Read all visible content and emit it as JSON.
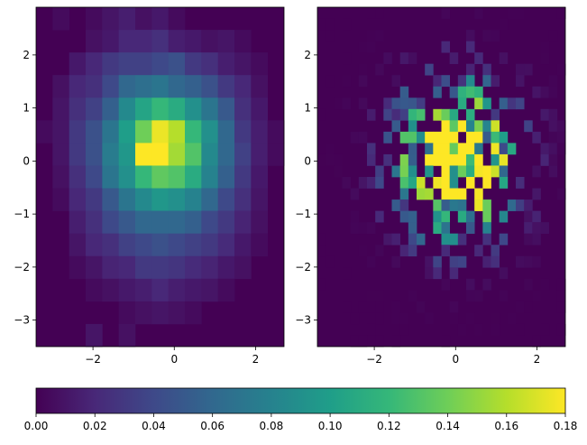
{
  "chart_data": [
    {
      "type": "heatmap",
      "title": "",
      "xlabel": "",
      "ylabel": "",
      "xlim": [
        -3.4,
        2.7
      ],
      "ylim": [
        -3.5,
        2.9
      ],
      "xticks": [
        -2,
        0,
        2
      ],
      "yticks": [
        -3,
        -2,
        -1,
        0,
        1,
        2
      ],
      "grid": false,
      "bins": 15,
      "values": [
        [
          0.0,
          0.005,
          0.0,
          0.005,
          0.01,
          0.015,
          0.008,
          0.012,
          0.005,
          0.0,
          0.0,
          0.0,
          0.0,
          0.0,
          0.0
        ],
        [
          0.0,
          0.0,
          0.0,
          0.008,
          0.012,
          0.02,
          0.02,
          0.025,
          0.015,
          0.012,
          0.008,
          0.01,
          0.005,
          0.0,
          0.0
        ],
        [
          0.0,
          0.0,
          0.012,
          0.02,
          0.03,
          0.035,
          0.035,
          0.04,
          0.045,
          0.03,
          0.025,
          0.015,
          0.01,
          0.005,
          0.0
        ],
        [
          0.0,
          0.008,
          0.02,
          0.025,
          0.04,
          0.06,
          0.065,
          0.07,
          0.06,
          0.055,
          0.045,
          0.03,
          0.02,
          0.008,
          0.0
        ],
        [
          0.0,
          0.01,
          0.025,
          0.035,
          0.055,
          0.085,
          0.105,
          0.12,
          0.11,
          0.09,
          0.07,
          0.05,
          0.025,
          0.012,
          0.0
        ],
        [
          0.005,
          0.01,
          0.03,
          0.045,
          0.07,
          0.1,
          0.14,
          0.175,
          0.16,
          0.12,
          0.09,
          0.06,
          0.03,
          0.015,
          0.005
        ],
        [
          0.0,
          0.01,
          0.03,
          0.045,
          0.075,
          0.095,
          0.18,
          0.18,
          0.155,
          0.13,
          0.085,
          0.06,
          0.035,
          0.015,
          0.005
        ],
        [
          0.0,
          0.008,
          0.025,
          0.04,
          0.07,
          0.09,
          0.12,
          0.135,
          0.13,
          0.11,
          0.08,
          0.055,
          0.03,
          0.012,
          0.0
        ],
        [
          0.0,
          0.005,
          0.02,
          0.03,
          0.05,
          0.07,
          0.085,
          0.095,
          0.09,
          0.08,
          0.06,
          0.04,
          0.025,
          0.01,
          0.0
        ],
        [
          0.0,
          0.0,
          0.015,
          0.025,
          0.04,
          0.05,
          0.06,
          0.06,
          0.06,
          0.055,
          0.04,
          0.03,
          0.018,
          0.008,
          0.0
        ],
        [
          0.0,
          0.0,
          0.01,
          0.02,
          0.025,
          0.035,
          0.04,
          0.045,
          0.04,
          0.035,
          0.03,
          0.022,
          0.012,
          0.005,
          0.0
        ],
        [
          0.0,
          0.0,
          0.005,
          0.01,
          0.018,
          0.02,
          0.03,
          0.03,
          0.028,
          0.022,
          0.018,
          0.012,
          0.008,
          0.0,
          0.0
        ],
        [
          0.0,
          0.0,
          0.0,
          0.005,
          0.008,
          0.012,
          0.015,
          0.02,
          0.015,
          0.012,
          0.01,
          0.005,
          0.0,
          0.0,
          0.0
        ],
        [
          0.0,
          0.0,
          0.0,
          0.0,
          0.0,
          0.005,
          0.008,
          0.01,
          0.008,
          0.005,
          0.0,
          0.0,
          0.0,
          0.0,
          0.0
        ],
        [
          0.0,
          0.0,
          0.0,
          0.01,
          0.0,
          0.008,
          0.0,
          0.0,
          0.0,
          0.0,
          0.0,
          0.0,
          0.0,
          0.0,
          0.0
        ]
      ]
    },
    {
      "type": "heatmap",
      "title": "",
      "xlabel": "",
      "ylabel": "",
      "xlim": [
        -3.4,
        2.7
      ],
      "ylim": [
        -3.5,
        2.9
      ],
      "xticks": [
        -2,
        0,
        2
      ],
      "yticks": [
        -3,
        -2,
        -1,
        0,
        1,
        2
      ],
      "grid": false,
      "bins": 30
    }
  ],
  "colorbar": {
    "min": 0.0,
    "max": 0.18,
    "colormap": "viridis",
    "ticks": [
      "0.00",
      "0.02",
      "0.04",
      "0.06",
      "0.08",
      "0.10",
      "0.12",
      "0.14",
      "0.16",
      "0.18"
    ]
  },
  "colors": {
    "viridis_stops": [
      "#440154",
      "#482878",
      "#3e4989",
      "#31688e",
      "#26828e",
      "#1f9e89",
      "#35b779",
      "#6ece58",
      "#b5de2b",
      "#fde725"
    ]
  }
}
